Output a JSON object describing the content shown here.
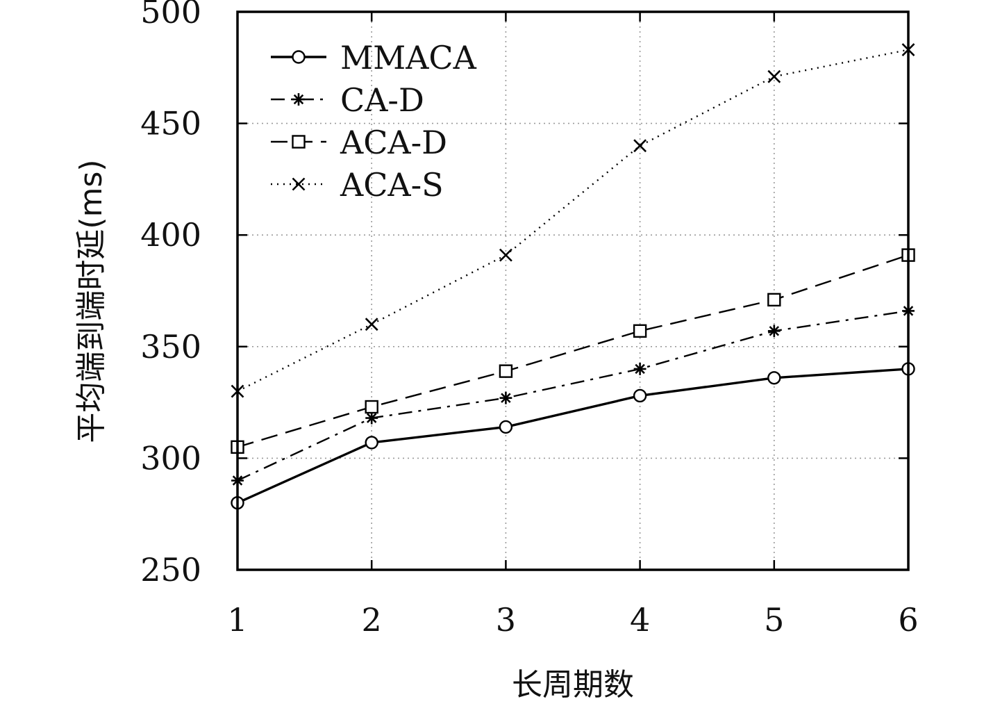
{
  "chart_data": {
    "type": "line",
    "title": "",
    "xlabel": "长周期数",
    "ylabel": "平均端到端时延(ms)",
    "x": [
      1,
      2,
      3,
      4,
      5,
      6
    ],
    "xticks": [
      "1",
      "2",
      "3",
      "4",
      "5",
      "6"
    ],
    "xlim": [
      1,
      6
    ],
    "ylim": [
      250,
      500
    ],
    "yticks": [
      "250",
      "300",
      "350",
      "400",
      "450",
      "500"
    ],
    "grid": true,
    "legend_position": "top-left",
    "series": [
      {
        "name": "MMACA",
        "values": [
          280,
          307,
          314,
          328,
          336,
          340
        ],
        "marker": "circle",
        "line_style": "solid",
        "color": "#000000"
      },
      {
        "name": "CA-D",
        "values": [
          290,
          318,
          327,
          340,
          357,
          366
        ],
        "marker": "asterisk",
        "line_style": "dash-dot",
        "color": "#000000"
      },
      {
        "name": "ACA-D",
        "values": [
          305,
          323,
          339,
          357,
          371,
          391
        ],
        "marker": "square",
        "line_style": "dashed",
        "color": "#000000"
      },
      {
        "name": "ACA-S",
        "values": [
          330,
          360,
          391,
          440,
          471,
          483
        ],
        "marker": "x",
        "line_style": "dotted",
        "color": "#000000"
      }
    ]
  }
}
